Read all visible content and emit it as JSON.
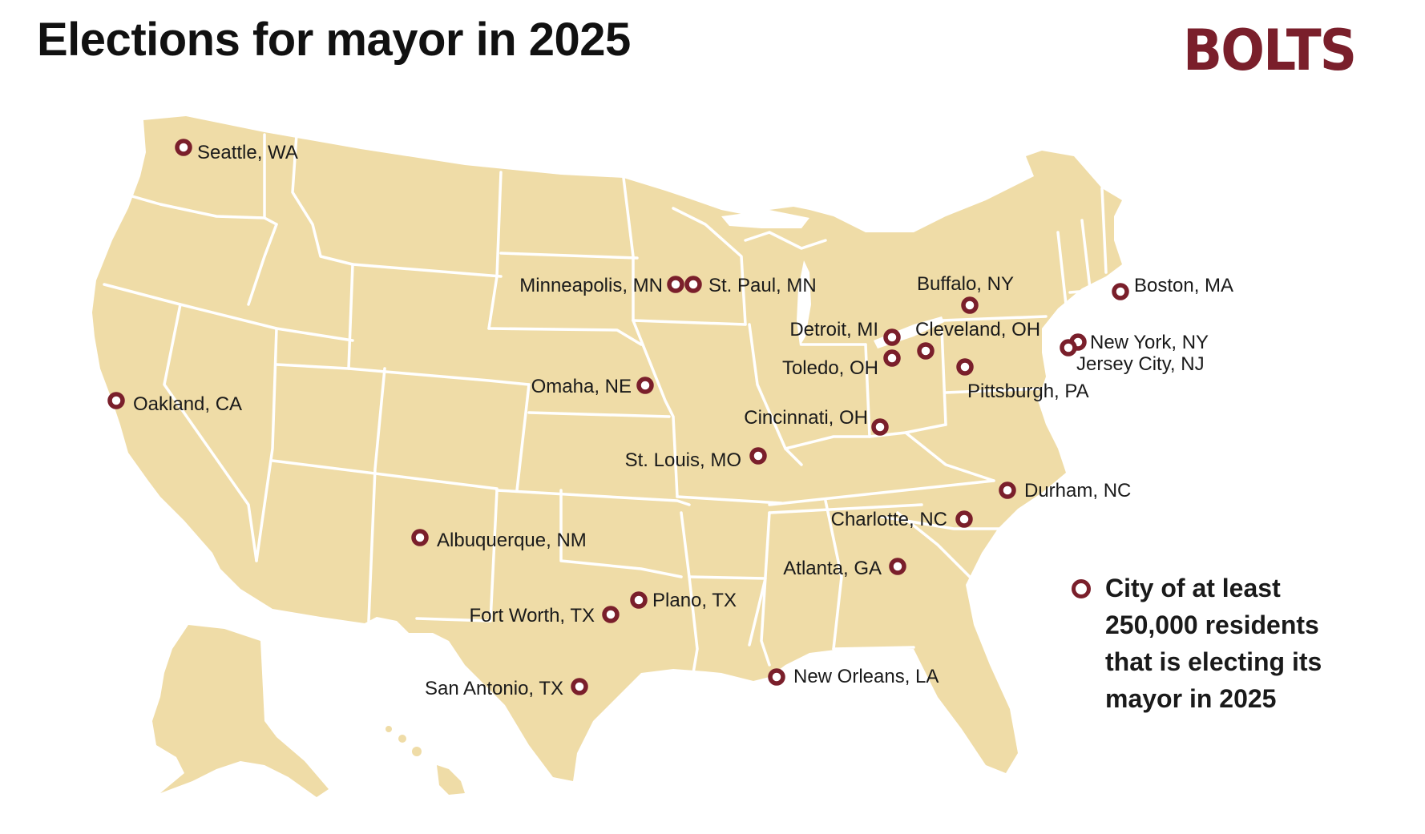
{
  "title": "Elections for mayor in 2025",
  "logo": "BOLTS",
  "colors": {
    "land": "#efdca7",
    "borders": "#ffffff",
    "marker": "#7a1f2b",
    "brand": "#7a1f2b",
    "text": "#111111"
  },
  "legend": {
    "marker_icon": "ring-marker-icon",
    "text": "City of at least 250,000 residents that is electing its mayor in 2025"
  },
  "cities": [
    {
      "name": "Seattle, WA"
    },
    {
      "name": "Oakland, CA"
    },
    {
      "name": "Minneapolis, MN"
    },
    {
      "name": "St. Paul, MN"
    },
    {
      "name": "Omaha, NE"
    },
    {
      "name": "St. Louis, MO"
    },
    {
      "name": "Albuquerque, NM"
    },
    {
      "name": "Fort Worth, TX"
    },
    {
      "name": "Plano, TX"
    },
    {
      "name": "San Antonio, TX"
    },
    {
      "name": "New Orleans, LA"
    },
    {
      "name": "Atlanta, GA"
    },
    {
      "name": "Charlotte, NC"
    },
    {
      "name": "Durham, NC"
    },
    {
      "name": "Cincinnati, OH"
    },
    {
      "name": "Detroit, MI"
    },
    {
      "name": "Toledo, OH"
    },
    {
      "name": "Cleveland, OH"
    },
    {
      "name": "Buffalo, NY"
    },
    {
      "name": "Pittsburgh, PA"
    },
    {
      "name": "New York, NY"
    },
    {
      "name": "Jersey City, NJ"
    },
    {
      "name": "Boston, MA"
    }
  ]
}
